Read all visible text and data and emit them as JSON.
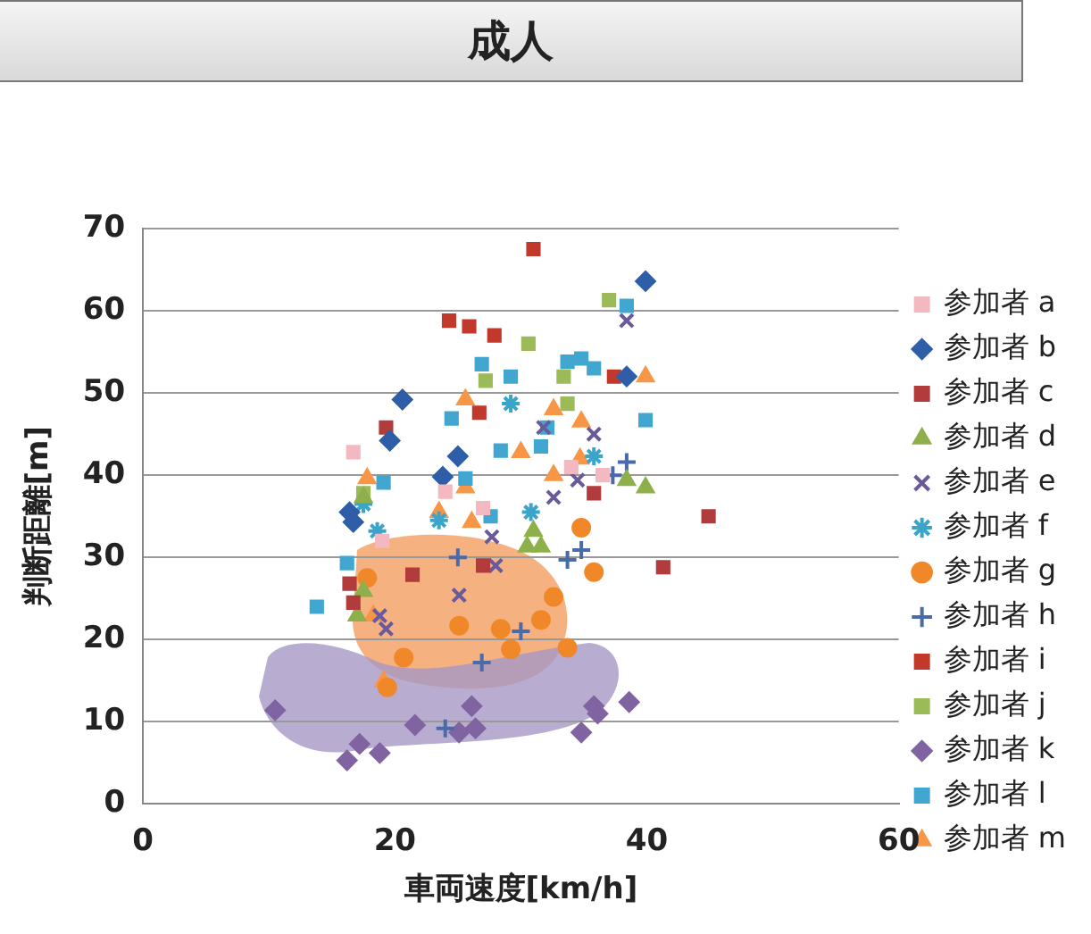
{
  "chart_data": {
    "type": "scatter",
    "title": "成人",
    "xlabel": "車両速度[km/h]",
    "ylabel": "判断距離[m]",
    "xlim": [
      0,
      60
    ],
    "xticks": [
      0,
      20,
      40,
      60
    ],
    "ylim": [
      0,
      70
    ],
    "yticks": [
      0,
      10,
      20,
      30,
      40,
      50,
      60,
      70
    ],
    "grid": "y",
    "legend": "right",
    "series": [
      {
        "name": "参加者 a",
        "color": "#f4b8c0",
        "marker": "square",
        "x": [
          16.7,
          19,
          24,
          34,
          27,
          36.5
        ],
        "values": [
          42.8,
          32,
          38,
          41,
          36,
          40
        ]
      },
      {
        "name": "参加者 b",
        "color": "#2e5ea8",
        "marker": "diamond",
        "x": [
          39.9,
          38.4,
          20.6,
          19.6,
          25,
          23.8,
          16.4,
          16.7
        ],
        "values": [
          63.6,
          52,
          49.2,
          44.2,
          42.3,
          39.8,
          35.5,
          34.3
        ]
      },
      {
        "name": "参加者 c",
        "color": "#b23b3b",
        "marker": "square",
        "x": [
          21.4,
          27,
          44.9,
          41.3,
          35.8,
          16.4,
          16.7,
          19.3
        ],
        "values": [
          27.9,
          29,
          35,
          28.8,
          37.8,
          26.8,
          24.5,
          45.8
        ]
      },
      {
        "name": "参加者 d",
        "color": "#8db04a",
        "marker": "triangle",
        "x": [
          17.5,
          17,
          38.4,
          39.9,
          31,
          31.6,
          30.5,
          17.5
        ],
        "values": [
          25.9,
          22.9,
          39.4,
          38.5,
          33.2,
          31.3,
          31.3,
          37.3
        ]
      },
      {
        "name": "参加者 e",
        "color": "#6a5a9a",
        "marker": "x",
        "x": [
          28,
          25.1,
          18.8,
          19.3,
          31.8,
          35.8,
          32.6,
          34.5,
          27.7,
          38.4
        ],
        "values": [
          29,
          25.4,
          22.9,
          21.3,
          45.8,
          45,
          37.3,
          39.4,
          32.5,
          58.8
        ]
      },
      {
        "name": "参加者 f",
        "color": "#3aa5c8",
        "marker": "cross",
        "x": [
          29.2,
          18.6,
          35.8,
          30.8,
          17.5,
          23.5
        ],
        "values": [
          48.7,
          33.2,
          42.3,
          35.5,
          36.5,
          34.5
        ]
      },
      {
        "name": "参加者 g",
        "color": "#f0882a",
        "marker": "circle",
        "x": [
          25.1,
          28.4,
          20.7,
          29.2,
          31.6,
          32.6,
          33.7,
          19.4,
          35.8,
          34.8,
          17.8
        ],
        "values": [
          21.7,
          21.3,
          17.8,
          18.8,
          22.4,
          25.2,
          19,
          14.2,
          28.2,
          33.6,
          27.5
        ]
      },
      {
        "name": "参加者 h",
        "color": "#4a6aaa",
        "marker": "plus",
        "x": [
          25,
          30,
          24,
          33.7,
          34.8,
          38.4,
          37.3,
          26.9
        ],
        "values": [
          30,
          21,
          9.2,
          29.7,
          30.9,
          41.6,
          40,
          17.2
        ]
      },
      {
        "name": "参加者 i",
        "color": "#c0392b",
        "marker": "square",
        "x": [
          31,
          24.3,
          25.9,
          27.9,
          26.7,
          37.4
        ],
        "values": [
          67.5,
          58.8,
          58.1,
          57,
          47.6,
          52
        ]
      },
      {
        "name": "参加者 j",
        "color": "#9bbb59",
        "marker": "square",
        "x": [
          30.6,
          37,
          27.2,
          33.4,
          33.7,
          17.5
        ],
        "values": [
          56,
          61.3,
          51.5,
          52,
          48.7,
          37.8
        ]
      },
      {
        "name": "参加者 k",
        "color": "#8064a2",
        "marker": "diamond",
        "x": [
          10.5,
          21.6,
          17.2,
          18.8,
          16.2,
          26.1,
          25.1,
          26.4,
          35.8,
          38.6,
          34.8,
          36.1
        ],
        "values": [
          11.4,
          9.6,
          7.3,
          6.2,
          5.3,
          11.9,
          8.7,
          9.2,
          11.9,
          12.4,
          8.7,
          11
        ]
      },
      {
        "name": "参加者 l",
        "color": "#41a6d0",
        "marker": "square",
        "x": [
          26.9,
          29.2,
          24.5,
          28.4,
          19.1,
          25.6,
          27.6,
          33.7,
          34.8,
          35.8,
          38.4,
          39.9,
          32.1,
          16.2,
          13.8,
          31.6
        ],
        "values": [
          53.5,
          52,
          46.9,
          43,
          39.1,
          39.6,
          35,
          53.8,
          54.2,
          53,
          60.6,
          46.7,
          45.8,
          29.3,
          24,
          43.5
        ]
      },
      {
        "name": "参加者 m",
        "color": "#f79646",
        "marker": "triangle",
        "x": [
          25.6,
          30,
          17.8,
          25.6,
          23.5,
          26.1,
          32.6,
          34.8,
          39.9,
          34.7,
          32.6,
          18.3,
          19.1
        ],
        "values": [
          49.2,
          42.8,
          39.6,
          38.5,
          35.5,
          34.3,
          48,
          46.5,
          52,
          42,
          40,
          22.9,
          14.9
        ]
      }
    ]
  }
}
